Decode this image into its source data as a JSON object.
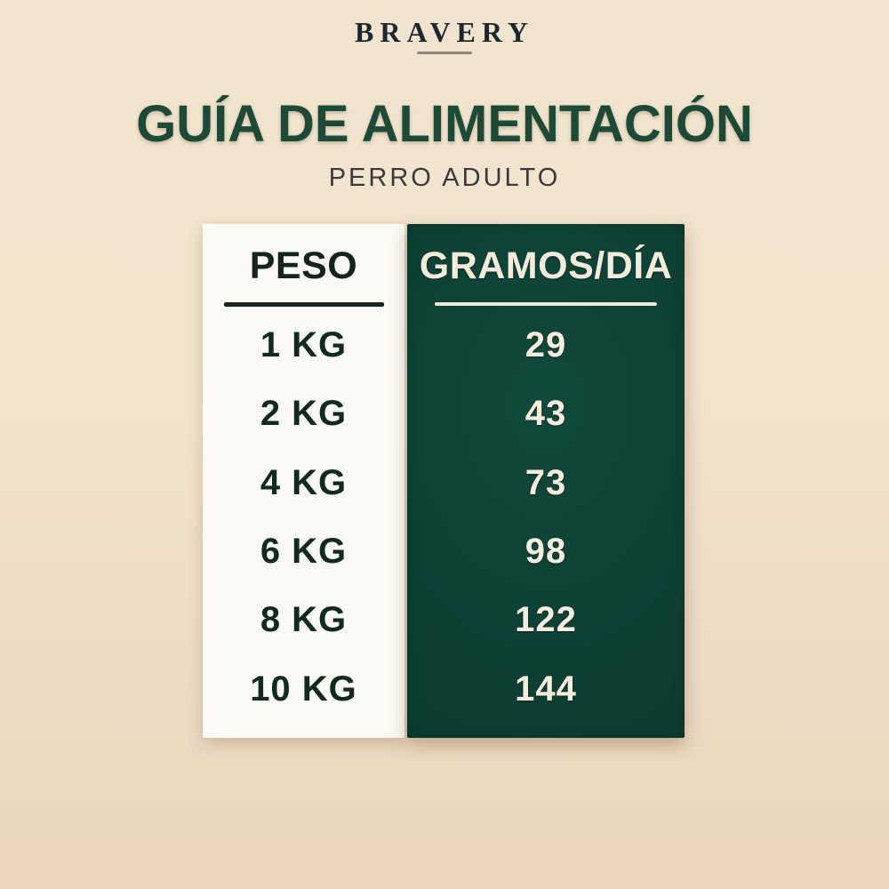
{
  "brand": {
    "name": "BRAVERY"
  },
  "header": {
    "title": "GUÍA DE ALIMENTACIÓN",
    "subtitle": "PERRO ADULTO"
  },
  "table": {
    "peso_header": "PESO",
    "gramos_header": "GRAMOS/DÍA",
    "rows": [
      {
        "peso": "1 KG",
        "gramos": "29"
      },
      {
        "peso": "2 KG",
        "gramos": "43"
      },
      {
        "peso": "4 KG",
        "gramos": "73"
      },
      {
        "peso": "6 KG",
        "gramos": "98"
      },
      {
        "peso": "8 KG",
        "gramos": "122"
      },
      {
        "peso": "10 KG",
        "gramos": "144"
      }
    ]
  },
  "chart_data": {
    "type": "table",
    "title": "GUÍA DE ALIMENTACIÓN",
    "subtitle": "PERRO ADULTO",
    "columns": [
      "PESO",
      "GRAMOS/DÍA"
    ],
    "categories": [
      "1 KG",
      "2 KG",
      "4 KG",
      "6 KG",
      "8 KG",
      "10 KG"
    ],
    "values": [
      29,
      43,
      73,
      98,
      122,
      144
    ]
  },
  "colors": {
    "background_top": "#f1e4ce",
    "background_bottom": "#e9d6bc",
    "green_panel": "#0d4035",
    "title_green": "#1c4a36",
    "white_panel": "#fcfaf4",
    "cream_text": "#f3ecdb",
    "dark_text": "#14241d",
    "logo_dark": "#1d2732",
    "subtitle_gray": "#3a3a38"
  }
}
